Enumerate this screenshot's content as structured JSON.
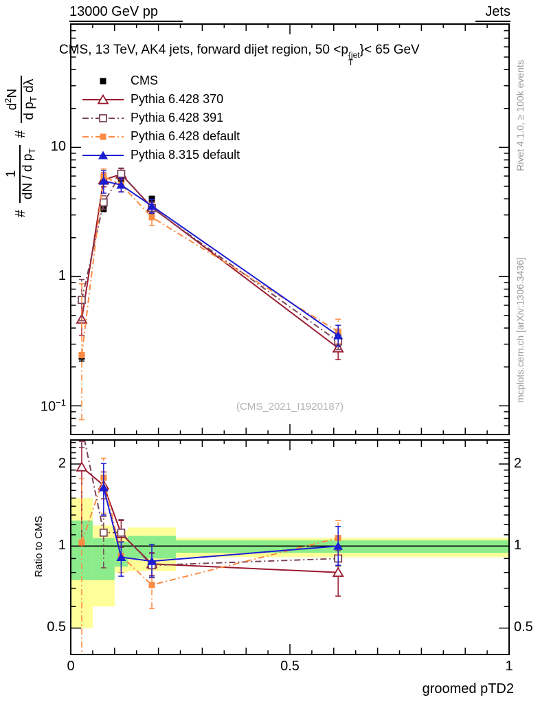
{
  "header": {
    "left": "13000 GeV pp",
    "right": "Jets"
  },
  "panel_title": {
    "prefix": "CMS, 13 TeV, AK4 jets, forward dijet region, 50 <p",
    "sup": "{jet",
    "sub": "T",
    "suffix": "}< 65 GeV"
  },
  "y_axis_label": {
    "hash1": "#",
    "frac1_num": "1",
    "frac1_den_a": "dN / d p",
    "frac1_den_sub": "T",
    "hash2": "#",
    "frac2_num_a": "d",
    "frac2_num_sup": "2",
    "frac2_num_b": "N",
    "frac2_den_a": "d p",
    "frac2_den_sub": "T",
    "frac2_den_b": " d",
    "frac2_den_c": "λ"
  },
  "right_margin": {
    "top_text": "Rivet 4.1.0, ≥ 100k events",
    "bottom_text": "mcplots.cern.ch [arXiv:1306.3436]"
  },
  "watermark": "(CMS_2021_I1920187)",
  "axes": {
    "main_yticks": [
      {
        "base": "10",
        "exp": ""
      },
      {
        "base": "1",
        "exp": ""
      },
      {
        "base": "10",
        "exp": "−1"
      }
    ],
    "ratio_yticks_left": [
      "2",
      "1",
      "0.5"
    ],
    "ratio_yticks_right": [
      "2",
      "1",
      "0.5"
    ],
    "xticks": [
      "0",
      "0.5",
      "1"
    ],
    "xlabel": "groomed pTD2",
    "ratio_ylabel": "Ratio to CMS"
  },
  "colors": {
    "cms": "#000000",
    "pythia6_370": "#9a1b30",
    "pythia6_391": "#7b4457",
    "pythia6_default": "#fb8b42",
    "pythia8_default": "#1c1cd2",
    "band_yellow": "#ffff99",
    "band_green": "#8cec8c",
    "gray_text": "#999999"
  },
  "chart_data": [
    {
      "type": "line",
      "panel": "main",
      "title": "CMS, 13 TeV, AK4 jets, forward dijet region, 50 <pT{jet}< 65 GeV",
      "xlabel": "groomed pTD2",
      "yscale": "log",
      "xlim": [
        0,
        1
      ],
      "ylim": [
        0.06,
        90
      ],
      "x": [
        0.025,
        0.075,
        0.115,
        0.185,
        0.61
      ],
      "series": [
        {
          "name": "CMS",
          "color": "#000000",
          "marker": "sq-f",
          "line": "none",
          "values": [
            0.24,
            3.35,
            5.6,
            4.0,
            0.35
          ],
          "err_lo": [
            0.222,
            3.18,
            5.33,
            3.82,
            0.332
          ],
          "err_hi": [
            0.258,
            3.52,
            5.88,
            4.18,
            0.368
          ]
        },
        {
          "name": "Pythia 6.428 370",
          "color": "#9a1b30",
          "marker": "tri-o",
          "line": "solid",
          "values": [
            0.468,
            5.6,
            6.2,
            3.44,
            0.28
          ],
          "err_lo": [
            0.35,
            4.95,
            5.6,
            3.12,
            0.228
          ],
          "err_hi": [
            0.625,
            6.35,
            6.85,
            3.78,
            0.332
          ]
        },
        {
          "name": "Pythia 6.428 391",
          "color": "#7b4457",
          "marker": "sq-o",
          "line": "dashdot",
          "values": [
            0.66,
            3.75,
            6.25,
            3.4,
            0.315
          ],
          "err_lo": [
            0.455,
            3.32,
            5.65,
            3.06,
            0.272
          ],
          "err_hi": [
            0.95,
            4.22,
            6.92,
            3.74,
            0.362
          ]
        },
        {
          "name": "Pythia 6.428 default",
          "color": "#fb8b42",
          "marker": "sq-f",
          "line": "dashdot",
          "values": [
            0.247,
            5.95,
            5.15,
            2.88,
            0.375
          ],
          "err_lo": [
            0.078,
            5.2,
            4.55,
            2.48,
            0.302
          ],
          "err_hi": [
            0.88,
            6.8,
            5.82,
            3.3,
            0.468
          ]
        },
        {
          "name": "Pythia 8.315 default",
          "color": "#1c1cd2",
          "marker": "tri-f",
          "line": "solid",
          "values": [
            null,
            5.5,
            5.12,
            3.52,
            0.35
          ],
          "err_lo": [
            null,
            4.42,
            4.52,
            3.1,
            0.29
          ],
          "err_hi": [
            null,
            6.6,
            5.8,
            3.95,
            0.42
          ]
        }
      ]
    },
    {
      "type": "line",
      "panel": "ratio",
      "ylabel": "Ratio to CMS",
      "yscale": "log",
      "xlim": [
        0,
        1
      ],
      "ylim": [
        0.4,
        2.45
      ],
      "ref_line": 1,
      "x": [
        0.025,
        0.075,
        0.115,
        0.185,
        0.61
      ],
      "bands": [
        {
          "x0": 0.0,
          "x1": 0.05,
          "yellow": [
            0.5,
            1.5
          ],
          "green": [
            0.75,
            1.24
          ]
        },
        {
          "x0": 0.05,
          "x1": 0.1,
          "yellow": [
            0.6,
            1.19
          ],
          "green": [
            0.75,
            1.07
          ]
        },
        {
          "x0": 0.1,
          "x1": 0.13,
          "yellow": [
            0.8,
            1.14
          ],
          "green": [
            0.84,
            1.04
          ]
        },
        {
          "x0": 0.13,
          "x1": 0.24,
          "yellow": [
            0.81,
            1.17
          ],
          "green": [
            0.9,
            1.09
          ]
        },
        {
          "x0": 0.24,
          "x1": 1.0,
          "yellow": [
            0.91,
            1.07
          ],
          "green": [
            0.945,
            1.05
          ]
        }
      ],
      "series": [
        {
          "name": "Pythia 6.428 370",
          "color": "#9a1b30",
          "marker": "tri-o",
          "line": "solid",
          "values": [
            1.95,
            1.67,
            1.11,
            0.86,
            0.8
          ],
          "err_lo": [
            1.02,
            1.49,
            0.99,
            0.78,
            0.655
          ],
          "err_hi": [
            2.42,
            1.87,
            1.24,
            0.945,
            0.915
          ]
        },
        {
          "name": "Pythia 6.428 391",
          "color": "#7b4457",
          "marker": "sq-o",
          "line": "dashdot",
          "values": [
            2.75,
            1.12,
            1.12,
            0.85,
            0.9
          ],
          "err_lo": [
            2.3,
            0.832,
            0.995,
            0.765,
            0.845
          ],
          "err_hi": [
            3.2,
            1.285,
            1.25,
            0.94,
            0.962
          ]
        },
        {
          "name": "Pythia 6.428 default",
          "color": "#fb8b42",
          "marker": "sq-f",
          "line": "dashdot",
          "values": [
            1.03,
            1.78,
            0.92,
            0.72,
            1.07
          ],
          "err_lo": [
            0.34,
            1.32,
            0.8,
            0.59,
            0.93
          ],
          "err_hi": [
            1.77,
            2.1,
            1.04,
            0.875,
            1.24
          ]
        },
        {
          "name": "Pythia 8.315 default",
          "color": "#1c1cd2",
          "marker": "tri-f",
          "line": "solid",
          "values": [
            null,
            1.64,
            0.91,
            0.88,
            1.0
          ],
          "err_lo": [
            null,
            1.3,
            0.775,
            0.77,
            0.85
          ],
          "err_hi": [
            null,
            2.01,
            1.035,
            1.015,
            1.18
          ]
        }
      ]
    }
  ]
}
